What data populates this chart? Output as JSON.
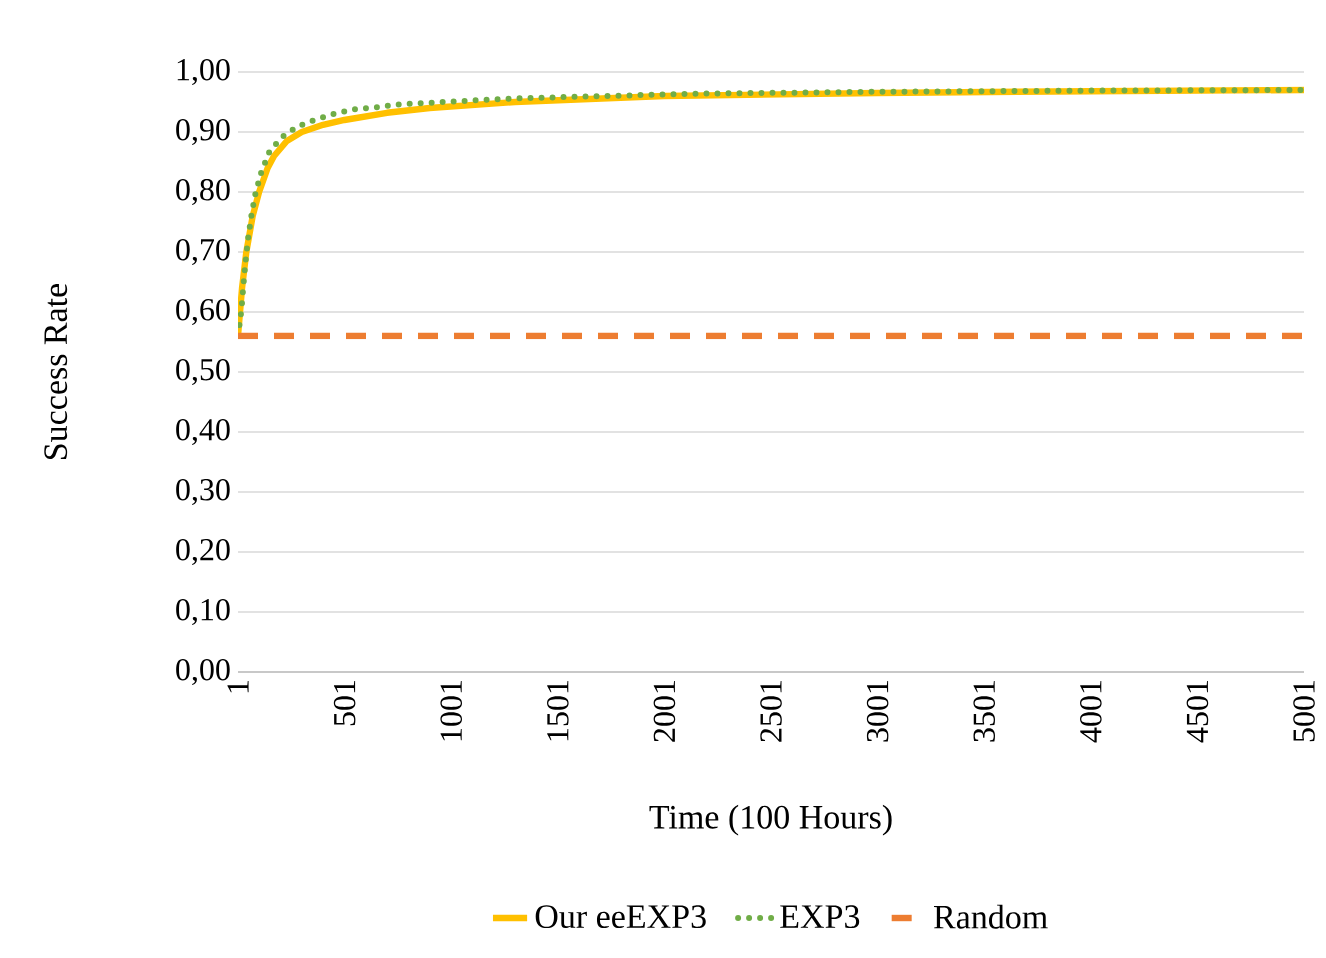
{
  "chart_data": {
    "type": "line",
    "xlabel": "Time (100 Hours)",
    "ylabel": "Success Rate",
    "xlim": [
      1,
      5001
    ],
    "xticks": [
      1,
      501,
      1001,
      1501,
      2001,
      2501,
      3001,
      3501,
      4001,
      4501,
      5001
    ],
    "ylim": [
      0,
      1
    ],
    "yticks": [
      {
        "value": 0,
        "label": "0,00"
      },
      {
        "value": 0.1,
        "label": "0,10"
      },
      {
        "value": 0.2,
        "label": "0,20"
      },
      {
        "value": 0.3,
        "label": "0,30"
      },
      {
        "value": 0.4,
        "label": "0,40"
      },
      {
        "value": 0.5,
        "label": "0,50"
      },
      {
        "value": 0.6,
        "label": "0,60"
      },
      {
        "value": 0.7,
        "label": "0,70"
      },
      {
        "value": 0.8,
        "label": "0,80"
      },
      {
        "value": 0.9,
        "label": "0,90"
      },
      {
        "value": 1,
        "label": "1,00"
      }
    ],
    "grid": "y",
    "legend": "bottom",
    "series": [
      {
        "name": "Our eeEXP3",
        "color": "#ffc000",
        "line_style": "solid",
        "x": [
          1,
          20,
          40,
          70,
          100,
          140,
          170,
          230,
          300,
          400,
          500,
          700,
          900,
          1300,
          2000,
          3000,
          4000,
          5001
        ],
        "values": [
          0.56,
          0.64,
          0.7,
          0.76,
          0.8,
          0.84,
          0.86,
          0.885,
          0.9,
          0.912,
          0.92,
          0.932,
          0.94,
          0.95,
          0.96,
          0.965,
          0.968,
          0.97
        ]
      },
      {
        "name": "EXP3",
        "color": "#70ad47",
        "line_style": "dotted",
        "x": [
          1,
          17,
          26,
          36,
          48,
          64,
          83,
          111,
          148,
          205,
          280,
          360,
          448,
          548,
          651,
          754,
          967,
          1293,
          1730,
          2168,
          3000,
          4000,
          5001
        ],
        "values": [
          0.56,
          0.603,
          0.643,
          0.683,
          0.722,
          0.761,
          0.798,
          0.834,
          0.867,
          0.891,
          0.909,
          0.92,
          0.93,
          0.938,
          0.941,
          0.946,
          0.95,
          0.956,
          0.96,
          0.964,
          0.967,
          0.969,
          0.97
        ]
      },
      {
        "name": "Random",
        "color": "#ed7d31",
        "line_style": "dashed",
        "x": [
          1,
          5001
        ],
        "values": [
          0.56,
          0.56
        ]
      }
    ]
  }
}
